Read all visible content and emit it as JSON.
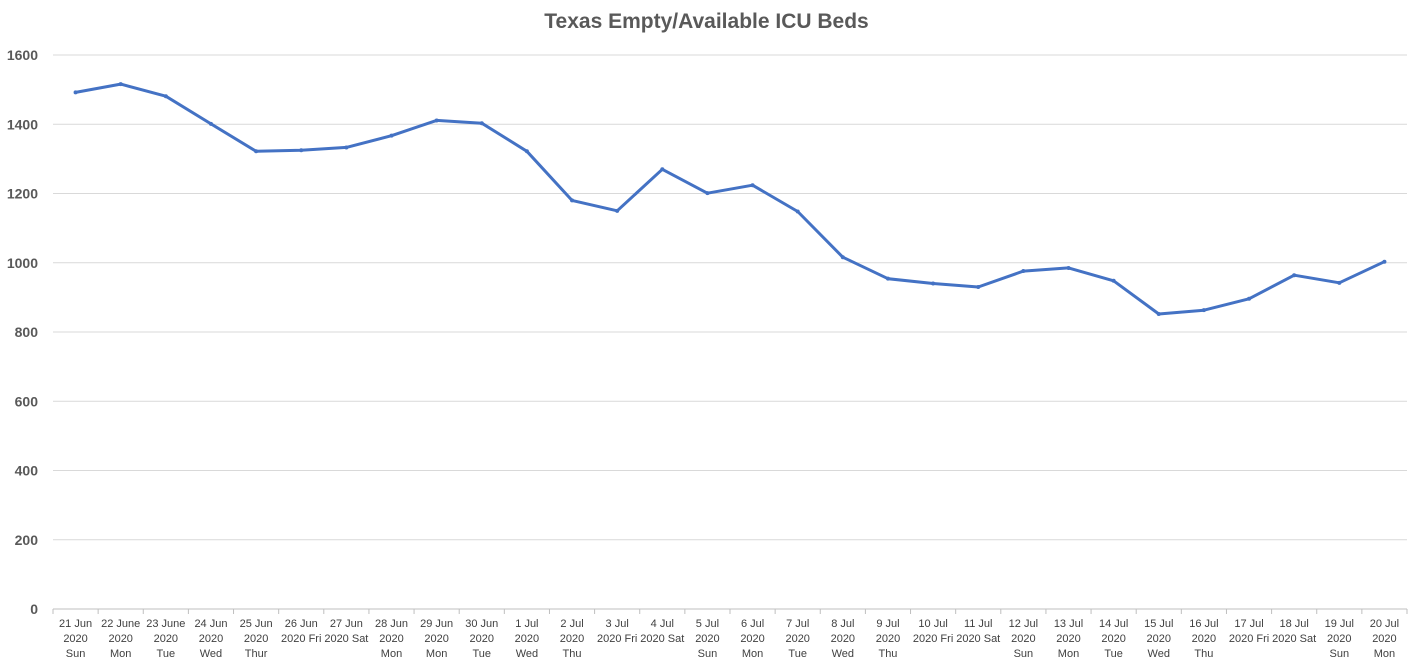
{
  "chart_data": {
    "type": "line",
    "title": "Texas Empty/Available ICU Beds",
    "xlabel": "",
    "ylabel": "",
    "ylim": [
      0,
      1600
    ],
    "yticks": [
      0,
      200,
      400,
      600,
      800,
      1000,
      1200,
      1400,
      1600
    ],
    "grid": true,
    "categories": [
      [
        "21 Jun",
        "2020",
        "Sun"
      ],
      [
        "22 June",
        "2020",
        "Mon"
      ],
      [
        "23 June",
        "2020",
        "Tue"
      ],
      [
        "24 Jun",
        "2020",
        "Wed"
      ],
      [
        "25 Jun",
        "2020",
        "Thur"
      ],
      [
        "26 Jun",
        "2020 Fri"
      ],
      [
        "27 Jun",
        "2020 Sat"
      ],
      [
        "28 Jun",
        "2020",
        "Mon"
      ],
      [
        "29 Jun",
        "2020",
        "Mon"
      ],
      [
        "30 Jun",
        "2020",
        "Tue"
      ],
      [
        "1 Jul",
        "2020",
        "Wed"
      ],
      [
        "2 Jul",
        "2020",
        "Thu"
      ],
      [
        "3 Jul",
        "2020 Fri"
      ],
      [
        "4 Jul",
        "2020 Sat"
      ],
      [
        "5 Jul",
        "2020",
        "Sun"
      ],
      [
        "6 Jul",
        "2020",
        "Mon"
      ],
      [
        "7 Jul",
        "2020",
        "Tue"
      ],
      [
        "8 Jul",
        "2020",
        "Wed"
      ],
      [
        "9 Jul",
        "2020",
        "Thu"
      ],
      [
        "10 Jul",
        "2020 Fri"
      ],
      [
        "11 Jul",
        "2020 Sat"
      ],
      [
        "12 Jul",
        "2020",
        "Sun"
      ],
      [
        "13 Jul",
        "2020",
        "Mon"
      ],
      [
        "14 Jul",
        "2020",
        "Tue"
      ],
      [
        "15 Jul",
        "2020",
        "Wed"
      ],
      [
        "16 Jul",
        "2020",
        "Thu"
      ],
      [
        "17 Jul",
        "2020 Fri"
      ],
      [
        "18 Jul",
        "2020 Sat"
      ],
      [
        "19 Jul",
        "2020",
        "Sun"
      ],
      [
        "20 Jul",
        "2020",
        "Mon"
      ]
    ],
    "series": [
      {
        "name": "Empty/Available ICU Beds",
        "color": "#4472c4",
        "values": [
          1492,
          1516,
          1481,
          1401,
          1322,
          1325,
          1333,
          1367,
          1411,
          1403,
          1322,
          1180,
          1150,
          1270,
          1201,
          1224,
          1148,
          1016,
          954,
          940,
          930,
          976,
          985,
          948,
          852,
          863,
          896,
          964,
          942,
          1003
        ]
      }
    ]
  }
}
